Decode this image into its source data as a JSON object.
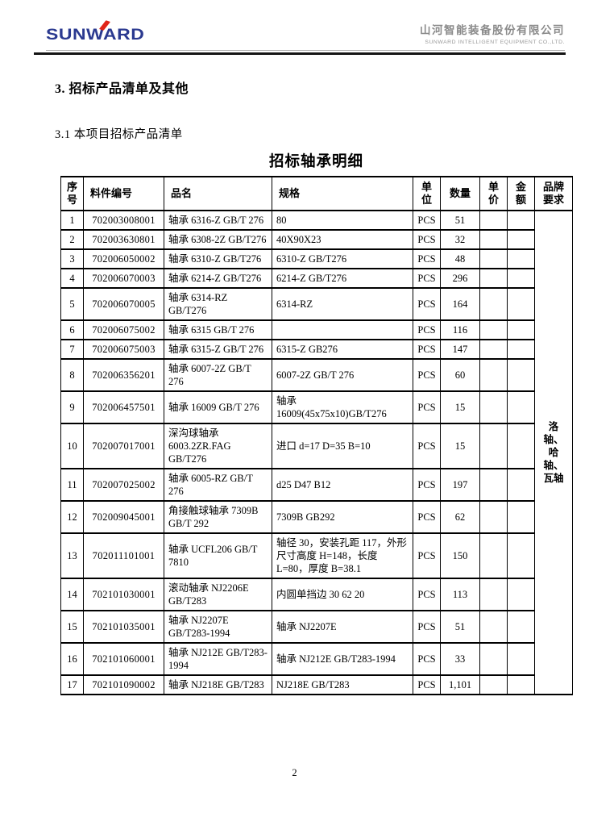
{
  "header": {
    "logo_text": "SUNWARD",
    "company_cn": "山河智能装备股份有限公司",
    "company_en": "SUNWARD INTELLIGENT EQUIPMENT CO.,LTD."
  },
  "colors": {
    "logo_blue": "#2b3a90",
    "logo_red": "#e02418",
    "company_gray": "#8a8a8a",
    "rule_black": "#141414"
  },
  "sections": {
    "heading": "3. 招标产品清单及其他",
    "subheading": "3.1 本项目招标产品清单",
    "table_title": "招标轴承明细"
  },
  "table": {
    "headers": [
      "序号",
      "料件编号",
      "品名",
      "规格",
      "单位",
      "数量",
      "单价",
      "金额",
      "品牌要求"
    ],
    "brand_requirement": "洛轴、哈轴、瓦轴",
    "rows": [
      {
        "no": "1",
        "code": "702003008001",
        "name": "轴承 6316-Z GB/T 276",
        "spec": "80",
        "unit": "PCS",
        "qty": "51",
        "price": "",
        "amount": ""
      },
      {
        "no": "2",
        "code": "702003630801",
        "name": "轴承 6308-2Z GB/T276",
        "spec": "40X90X23",
        "unit": "PCS",
        "qty": "32",
        "price": "",
        "amount": ""
      },
      {
        "no": "3",
        "code": "702006050002",
        "name": "轴承 6310-Z GB/T276",
        "spec": "6310-Z GB/T276",
        "unit": "PCS",
        "qty": "48",
        "price": "",
        "amount": ""
      },
      {
        "no": "4",
        "code": "702006070003",
        "name": "轴承 6214-Z GB/T276",
        "spec": "6214-Z GB/T276",
        "unit": "PCS",
        "qty": "296",
        "price": "",
        "amount": ""
      },
      {
        "no": "5",
        "code": "702006070005",
        "name": "轴承 6314-RZ GB/T276",
        "spec": "6314-RZ",
        "unit": "PCS",
        "qty": "164",
        "price": "",
        "amount": ""
      },
      {
        "no": "6",
        "code": "702006075002",
        "name": "轴承 6315 GB/T 276",
        "spec": "",
        "unit": "PCS",
        "qty": "116",
        "price": "",
        "amount": ""
      },
      {
        "no": "7",
        "code": "702006075003",
        "name": "轴承 6315-Z GB/T 276",
        "spec": "6315-Z GB276",
        "unit": "PCS",
        "qty": "147",
        "price": "",
        "amount": ""
      },
      {
        "no": "8",
        "code": "702006356201",
        "name": "轴承 6007-2Z GB/T 276",
        "spec": "6007-2Z GB/T 276",
        "unit": "PCS",
        "qty": "60",
        "price": "",
        "amount": ""
      },
      {
        "no": "9",
        "code": "702006457501",
        "name": "轴承 16009 GB/T 276",
        "spec": "轴承 16009(45x75x10)GB/T276",
        "unit": "PCS",
        "qty": "15",
        "price": "",
        "amount": ""
      },
      {
        "no": "10",
        "code": "702007017001",
        "name": "深沟球轴承 6003.2ZR.FAG GB/T276",
        "spec": "进口  d=17 D=35 B=10",
        "unit": "PCS",
        "qty": "15",
        "price": "",
        "amount": ""
      },
      {
        "no": "11",
        "code": "702007025002",
        "name": "轴承 6005-RZ GB/T 276",
        "spec": "d25 D47 B12",
        "unit": "PCS",
        "qty": "197",
        "price": "",
        "amount": ""
      },
      {
        "no": "12",
        "code": "702009045001",
        "name": "角接触球轴承 7309B GB/T 292",
        "spec": "7309B GB292",
        "unit": "PCS",
        "qty": "62",
        "price": "",
        "amount": ""
      },
      {
        "no": "13",
        "code": "702011101001",
        "name": "轴承 UCFL206 GB/T 7810",
        "spec": "轴径 30，安装孔距 117，外形尺寸高度 H=148，长度 L=80，厚度 B=38.1",
        "unit": "PCS",
        "qty": "150",
        "price": "",
        "amount": ""
      },
      {
        "no": "14",
        "code": "702101030001",
        "name": "滚动轴承 NJ2206E GB/T283",
        "spec": "内圆单挡边 30 62 20",
        "unit": "PCS",
        "qty": "113",
        "price": "",
        "amount": ""
      },
      {
        "no": "15",
        "code": "702101035001",
        "name": "轴承 NJ2207E GB/T283-1994",
        "spec": "轴承 NJ2207E",
        "unit": "PCS",
        "qty": "51",
        "price": "",
        "amount": ""
      },
      {
        "no": "16",
        "code": "702101060001",
        "name": "轴承 NJ212E GB/T283-1994",
        "spec": "轴承 NJ212E GB/T283-1994",
        "unit": "PCS",
        "qty": "33",
        "price": "",
        "amount": ""
      },
      {
        "no": "17",
        "code": "702101090002",
        "name": "轴承 NJ218E GB/T283",
        "spec": "NJ218E GB/T283",
        "unit": "PCS",
        "qty": "1,101",
        "price": "",
        "amount": ""
      }
    ]
  },
  "footer": {
    "page_number": "2"
  }
}
